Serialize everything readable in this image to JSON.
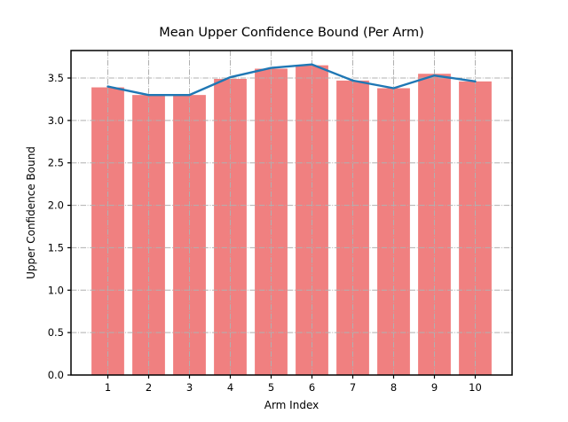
{
  "chart_data": {
    "type": "bar",
    "title": "Mean Upper Confidence Bound (Per Arm)",
    "xlabel": "Arm Index",
    "ylabel": "Upper Confidence Bound",
    "categories": [
      "1",
      "2",
      "3",
      "4",
      "5",
      "6",
      "7",
      "8",
      "9",
      "10"
    ],
    "series": [
      {
        "name": "mean-ucb-bars",
        "type": "bar",
        "values": [
          3.39,
          3.3,
          3.3,
          3.49,
          3.61,
          3.65,
          3.47,
          3.38,
          3.55,
          3.46
        ],
        "color": "#f08080"
      },
      {
        "name": "mean-ucb-line",
        "type": "line",
        "values": [
          3.4,
          3.3,
          3.3,
          3.51,
          3.62,
          3.66,
          3.47,
          3.38,
          3.53,
          3.46
        ],
        "color": "#1f77b4"
      }
    ],
    "ylim": [
      0,
      3.824
    ],
    "yticks": [
      0.0,
      0.5,
      1.0,
      1.5,
      2.0,
      2.5,
      3.0,
      3.5
    ],
    "ytick_labels": [
      "0.0",
      "0.5",
      "1.0",
      "1.5",
      "2.0",
      "2.5",
      "3.0",
      "3.5"
    ],
    "grid": {
      "on": true,
      "linestyle": "dashdot",
      "color": "#b0b0b0"
    },
    "bar_width_ratio": 0.8,
    "axis_color": "#000000",
    "background": "#ffffff"
  }
}
